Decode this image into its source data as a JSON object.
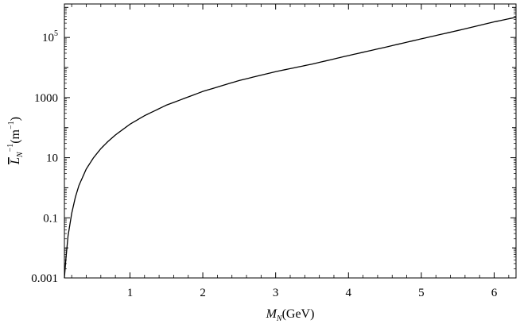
{
  "chart_data": {
    "type": "line",
    "xlabel": {
      "main": "M",
      "sub": "N",
      "suffix": "(GeV)"
    },
    "ylabel": {
      "main": "L",
      "sub": "N",
      "sup": "−1",
      "unit_open": "(m",
      "unit_sup": "−1",
      "unit_close": ")"
    },
    "y_scale": "log",
    "xlim": [
      0.1,
      6.3
    ],
    "ylim": [
      0.001,
      1300000
    ],
    "x_ticks": [
      {
        "value": 1,
        "label": "1"
      },
      {
        "value": 2,
        "label": "2"
      },
      {
        "value": 3,
        "label": "3"
      },
      {
        "value": 4,
        "label": "4"
      },
      {
        "value": 5,
        "label": "5"
      },
      {
        "value": 6,
        "label": "6"
      }
    ],
    "y_ticks": [
      {
        "value": 0.001,
        "label": "0.001",
        "sup": ""
      },
      {
        "value": 0.1,
        "label": "0.1",
        "sup": ""
      },
      {
        "value": 10,
        "label": "10",
        "sup": ""
      },
      {
        "value": 1000,
        "label": "1000",
        "sup": ""
      },
      {
        "value": 100000,
        "label": "10",
        "sup": "5"
      }
    ],
    "grid": false,
    "legend": "none",
    "line_color": "#000000",
    "series": [
      {
        "x": [
          0.1,
          0.12,
          0.15,
          0.2,
          0.25,
          0.3,
          0.4,
          0.5,
          0.6,
          0.7,
          0.8,
          1.0,
          1.2,
          1.5,
          2.0,
          2.5,
          3.0,
          3.5,
          4.0,
          4.5,
          5.0,
          5.5,
          6.0,
          6.3
        ],
        "y": [
          0.001,
          0.0042,
          0.025,
          0.14,
          0.48,
          1.2,
          4.2,
          10,
          20,
          35,
          57,
          130,
          250,
          560,
          1600,
          3700,
          7300,
          13000,
          25000,
          47000,
          90000,
          170000,
          330000,
          470000
        ]
      }
    ]
  }
}
